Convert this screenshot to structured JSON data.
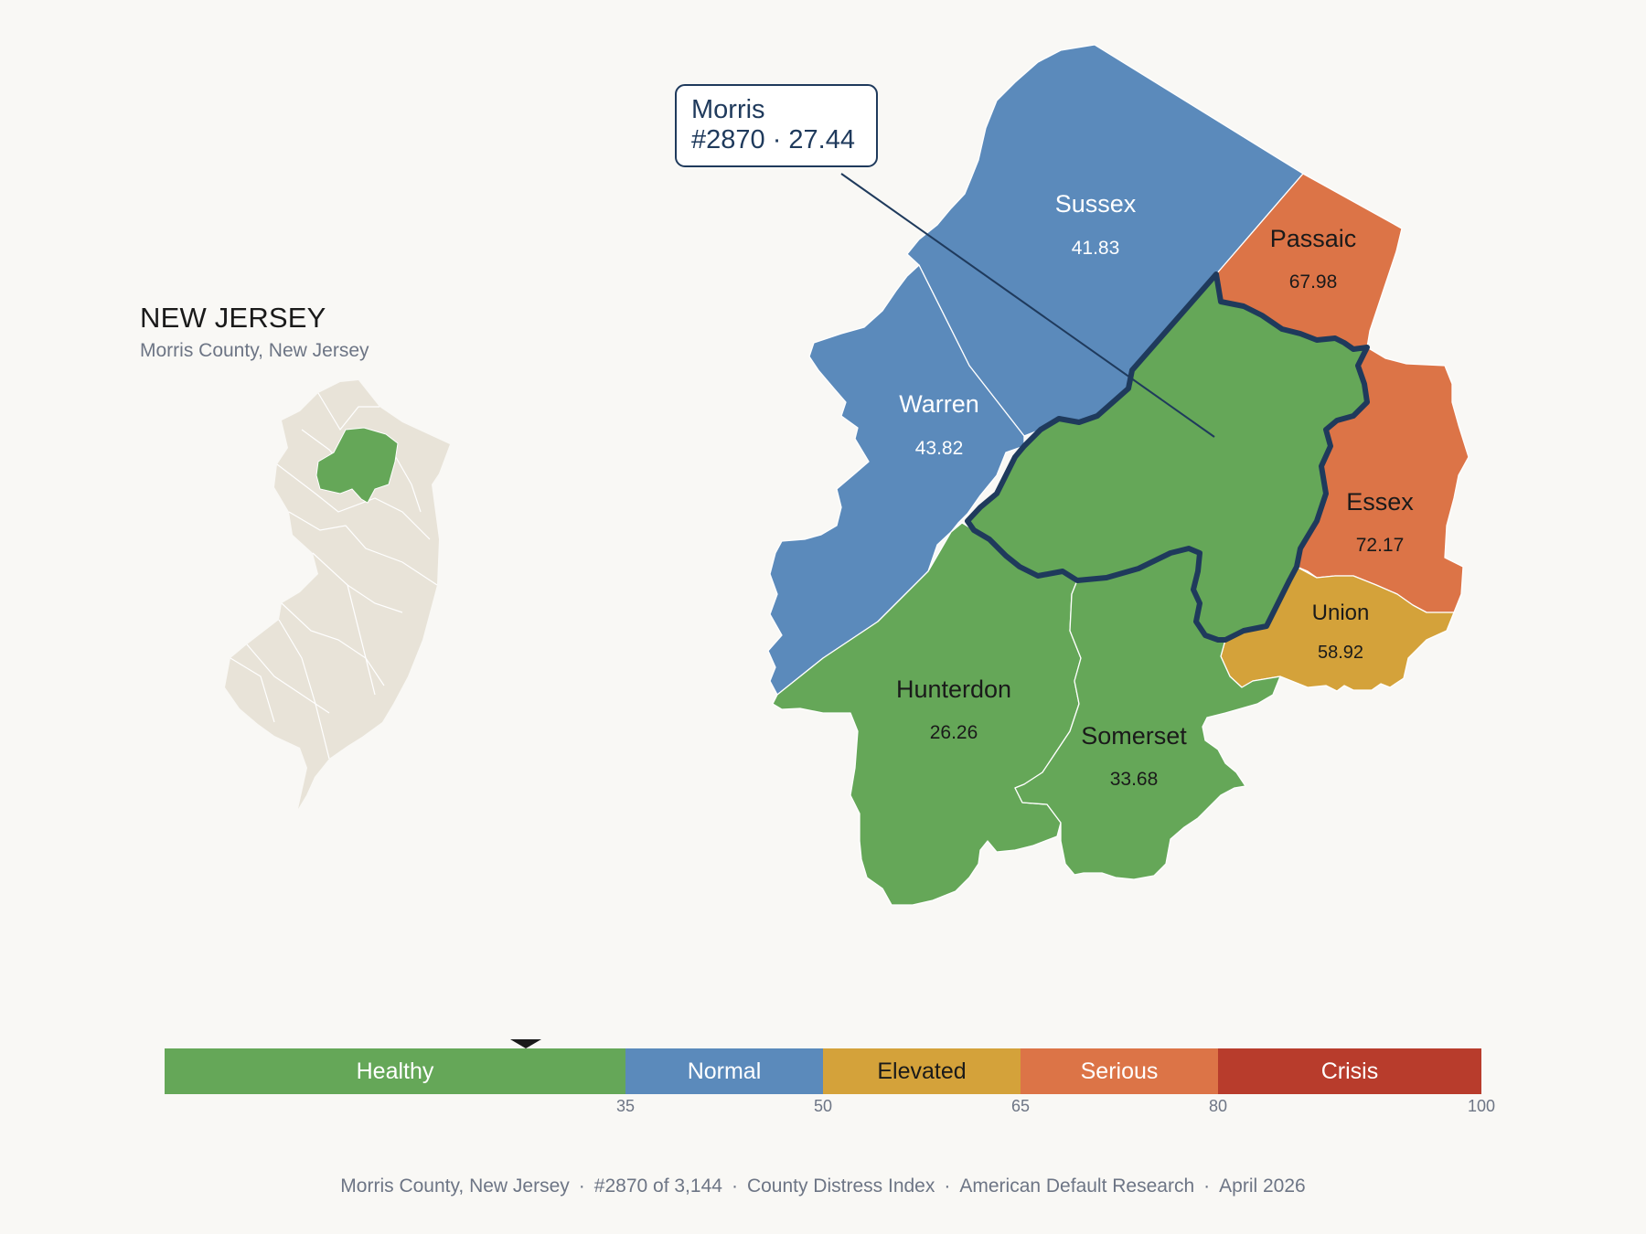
{
  "inset": {
    "title": "NEW JERSEY",
    "subtitle": "Morris County, New Jersey",
    "state_fill": "#e8e3d8",
    "highlight_fill": "#65a758"
  },
  "callout": {
    "name": "Morris",
    "detail": "#2870 · 27.44"
  },
  "counties": [
    {
      "name": "Sussex",
      "value": "41.83",
      "color": "#5b8abb"
    },
    {
      "name": "Passaic",
      "value": "67.98",
      "color": "#dc7447"
    },
    {
      "name": "Warren",
      "value": "43.82",
      "color": "#5b8abb"
    },
    {
      "name": "Essex",
      "value": "72.17",
      "color": "#dc7447"
    },
    {
      "name": "Union",
      "value": "58.92",
      "color": "#d4a23a"
    },
    {
      "name": "Hunterdon",
      "value": "26.26",
      "color": "#65a758"
    },
    {
      "name": "Somerset",
      "value": "33.68",
      "color": "#65a758"
    },
    {
      "name": "Morris",
      "value": "27.44",
      "color": "#65a758",
      "selected": true
    }
  ],
  "scale": {
    "marker_value": 27.44,
    "segments": [
      {
        "label": "Healthy",
        "from": 0,
        "to": 35,
        "color": "#65a758",
        "text_color": "#ffffff"
      },
      {
        "label": "Normal",
        "from": 35,
        "to": 50,
        "color": "#5b8abb",
        "text_color": "#ffffff"
      },
      {
        "label": "Elevated",
        "from": 50,
        "to": 65,
        "color": "#d4a23a",
        "text_color": "#1a1a1a"
      },
      {
        "label": "Serious",
        "from": 65,
        "to": 80,
        "color": "#dc7447",
        "text_color": "#ffffff"
      },
      {
        "label": "Crisis",
        "from": 80,
        "to": 100,
        "color": "#b83c2c",
        "text_color": "#ffffff"
      }
    ],
    "ticks": [
      "35",
      "50",
      "65",
      "80",
      "100"
    ]
  },
  "footer": {
    "items": [
      "Morris County, New Jersey",
      "#2870 of 3,144",
      "County Distress Index",
      "American Default Research",
      "April 2026"
    ]
  }
}
